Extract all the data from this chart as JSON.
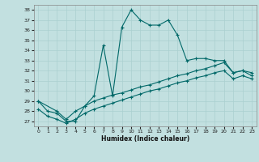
{
  "xlabel": "Humidex (Indice chaleur)",
  "bg_color": "#c2e0e0",
  "line_color": "#006868",
  "grid_color": "#aad0d0",
  "xlim": [
    -0.5,
    23.5
  ],
  "ylim": [
    26.5,
    38.5
  ],
  "xticks": [
    0,
    1,
    2,
    3,
    4,
    5,
    6,
    7,
    8,
    9,
    10,
    11,
    12,
    13,
    14,
    15,
    16,
    17,
    18,
    19,
    20,
    21,
    22,
    23
  ],
  "yticks": [
    27,
    28,
    29,
    30,
    31,
    32,
    33,
    34,
    35,
    36,
    37,
    38
  ],
  "line1_x": [
    0,
    1,
    2,
    3,
    4,
    5,
    6,
    7,
    8,
    9,
    10,
    11,
    12,
    13,
    14,
    15,
    16,
    17,
    18,
    19,
    20,
    21,
    22,
    23
  ],
  "line1_y": [
    29.0,
    28.0,
    27.8,
    27.0,
    27.0,
    28.5,
    29.5,
    34.5,
    29.5,
    36.3,
    38.0,
    37.0,
    36.5,
    36.5,
    37.0,
    35.5,
    33.0,
    33.2,
    33.2,
    33.0,
    33.0,
    31.8,
    32.0,
    31.5
  ],
  "line2_x": [
    0,
    2,
    3,
    4,
    5,
    6,
    7,
    8,
    9,
    10,
    11,
    12,
    13,
    14,
    15,
    16,
    17,
    18,
    19,
    20,
    21,
    22,
    23
  ],
  "line2_y": [
    29.0,
    28.0,
    27.2,
    28.0,
    28.5,
    29.0,
    29.3,
    29.6,
    29.8,
    30.1,
    30.4,
    30.6,
    30.9,
    31.2,
    31.5,
    31.7,
    32.0,
    32.2,
    32.5,
    32.8,
    31.8,
    32.0,
    31.8
  ],
  "line3_x": [
    0,
    1,
    2,
    3,
    4,
    5,
    6,
    7,
    8,
    9,
    10,
    11,
    12,
    13,
    14,
    15,
    16,
    17,
    18,
    19,
    20,
    21,
    22,
    23
  ],
  "line3_y": [
    28.2,
    27.5,
    27.2,
    26.8,
    27.2,
    27.8,
    28.2,
    28.5,
    28.8,
    29.1,
    29.4,
    29.7,
    30.0,
    30.2,
    30.5,
    30.8,
    31.0,
    31.3,
    31.5,
    31.8,
    32.0,
    31.2,
    31.5,
    31.2
  ]
}
